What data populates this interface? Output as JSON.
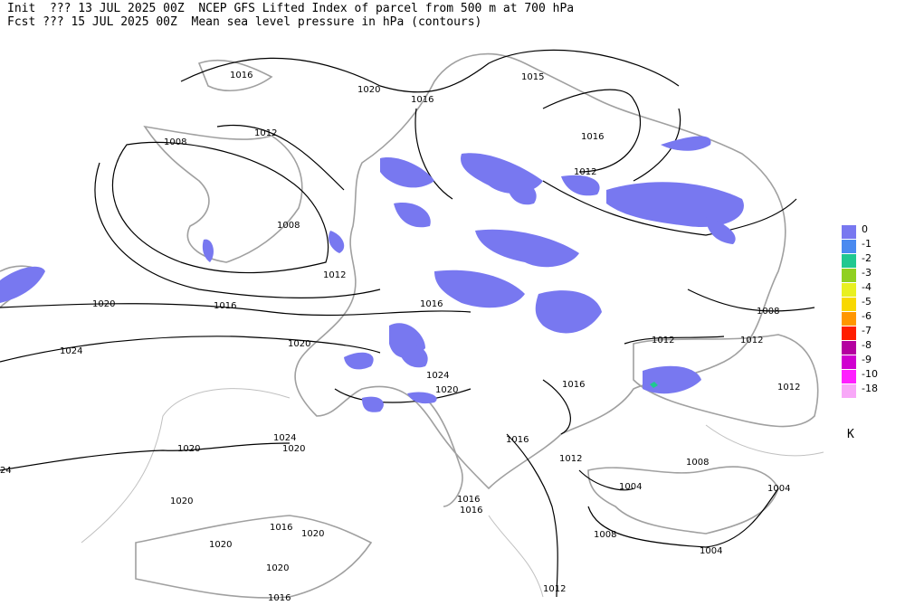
{
  "header": {
    "line1": "Init  ??? 13 JUL 2025 00Z  NCEP GFS Lifted Index of parcel from 500 m at 700 hPa",
    "line2": "Fcst ??? 15 JUL 2025 00Z  Mean sea level pressure in hPa (contours)"
  },
  "contour_labels": [
    1016,
    1020,
    1016,
    1015,
    1012,
    1008,
    1016,
    1012,
    1008,
    1012,
    1016,
    1020,
    1016,
    1008,
    1012,
    1012,
    1020,
    1024,
    1024,
    1020,
    1016,
    1012,
    1016,
    1024,
    1020,
    1020,
    1012,
    1008,
    1004,
    1004,
    1020,
    1016,
    1016,
    1016,
    1020,
    1020,
    1008,
    1004,
    1020,
    1012,
    1016,
    24
  ],
  "legend": {
    "entries": [
      {
        "label": 0,
        "color": "#7878f0"
      },
      {
        "label": -1,
        "color": "#4a8af0"
      },
      {
        "label": -2,
        "color": "#20c890"
      },
      {
        "label": -3,
        "color": "#90d020"
      },
      {
        "label": -4,
        "color": "#e8f020"
      },
      {
        "label": -5,
        "color": "#f8d800"
      },
      {
        "label": -6,
        "color": "#ff9600"
      },
      {
        "label": -7,
        "color": "#ff1e00"
      },
      {
        "label": -8,
        "color": "#b400a0"
      },
      {
        "label": -9,
        "color": "#d000d0"
      },
      {
        "label": -10,
        "color": "#ff20ff"
      },
      {
        "label": -18,
        "color": "#f8a8f8"
      }
    ],
    "unit": "K"
  }
}
